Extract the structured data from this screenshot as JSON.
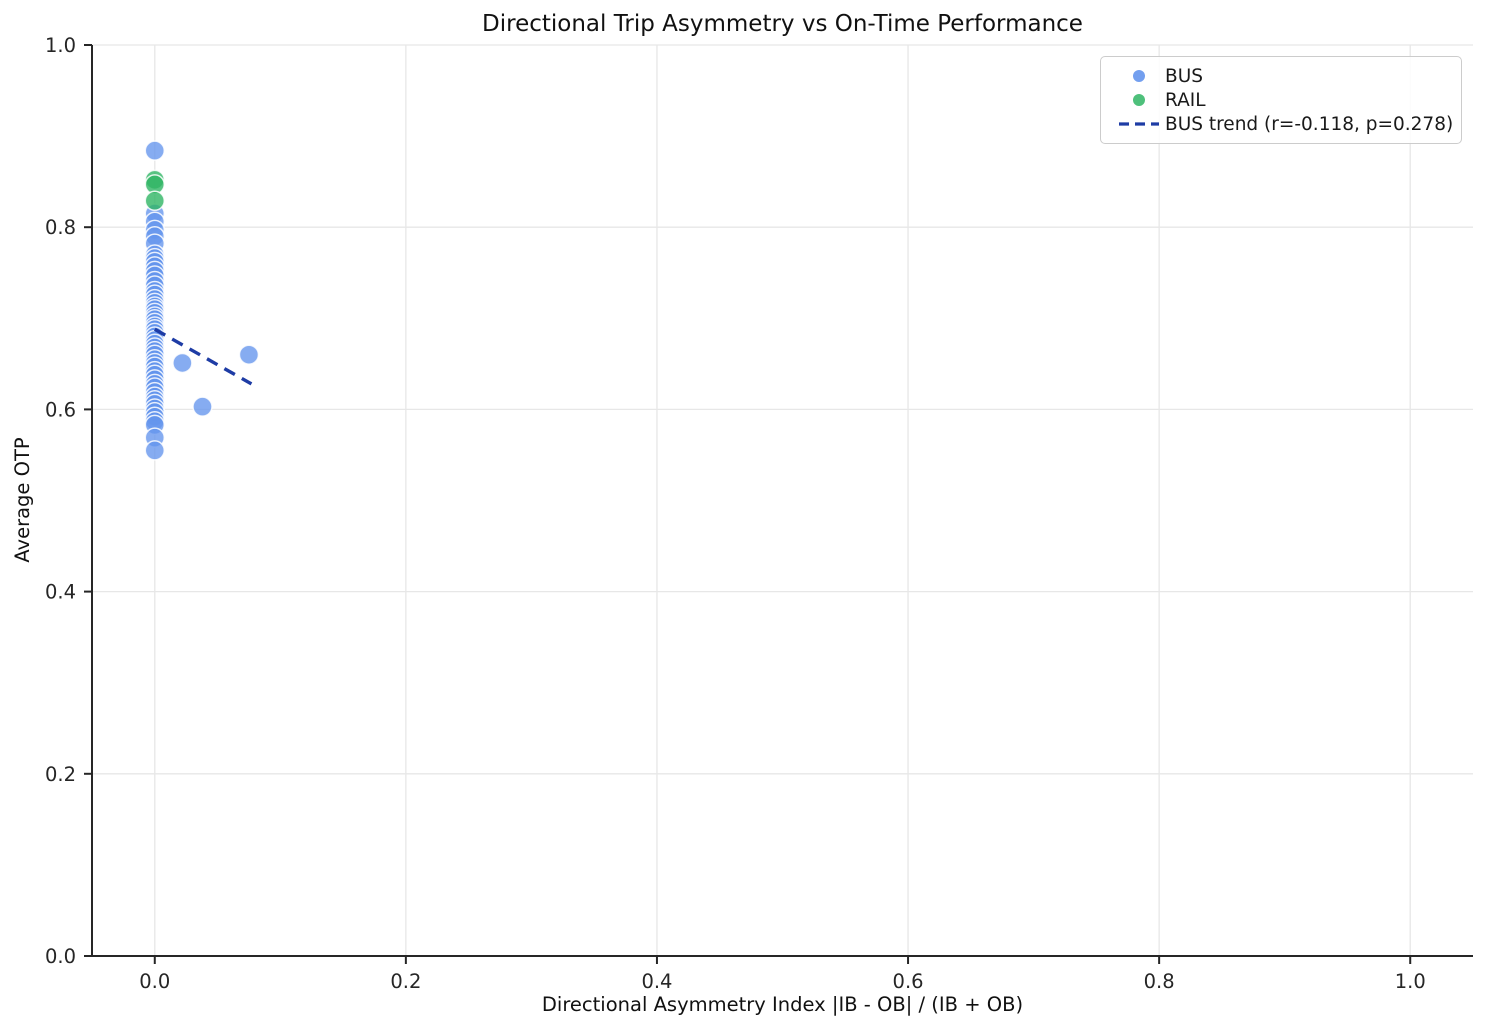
{
  "chart_data": {
    "type": "scatter",
    "title": "Directional Trip Asymmetry vs On-Time Performance",
    "xlabel": "Directional Asymmetry Index |IB - OB| / (IB + OB)",
    "ylabel": "Average OTP",
    "xlim": [
      -0.05,
      1.05
    ],
    "ylim": [
      0.0,
      1.0
    ],
    "xticks": [
      0.0,
      0.2,
      0.4,
      0.6,
      0.8,
      1.0
    ],
    "yticks": [
      0.0,
      0.2,
      0.4,
      0.6,
      0.8,
      1.0
    ],
    "grid": true,
    "legend_position": "upper right",
    "series": [
      {
        "name": "BUS",
        "color": "#6495ED",
        "opacity": 0.78,
        "points": [
          [
            0.0,
            0.884
          ],
          [
            0.0,
            0.815
          ],
          [
            0.0,
            0.806
          ],
          [
            0.0,
            0.797
          ],
          [
            0.0,
            0.79
          ],
          [
            0.0,
            0.782
          ],
          [
            0.0,
            0.77
          ],
          [
            0.0,
            0.766
          ],
          [
            0.0,
            0.762
          ],
          [
            0.0,
            0.757
          ],
          [
            0.0,
            0.752
          ],
          [
            0.0,
            0.747
          ],
          [
            0.0,
            0.741
          ],
          [
            0.0,
            0.736
          ],
          [
            0.0,
            0.73
          ],
          [
            0.0,
            0.726
          ],
          [
            0.0,
            0.721
          ],
          [
            0.0,
            0.717
          ],
          [
            0.0,
            0.713
          ],
          [
            0.0,
            0.71
          ],
          [
            0.0,
            0.706
          ],
          [
            0.0,
            0.702
          ],
          [
            0.0,
            0.699
          ],
          [
            0.0,
            0.695
          ],
          [
            0.0,
            0.691
          ],
          [
            0.0,
            0.688
          ],
          [
            0.0,
            0.684
          ],
          [
            0.0,
            0.68
          ],
          [
            0.0,
            0.676
          ],
          [
            0.0,
            0.672
          ],
          [
            0.0,
            0.668
          ],
          [
            0.0,
            0.664
          ],
          [
            0.0,
            0.66
          ],
          [
            0.0,
            0.655
          ],
          [
            0.0,
            0.651
          ],
          [
            0.0,
            0.647
          ],
          [
            0.0,
            0.642
          ],
          [
            0.0,
            0.638
          ],
          [
            0.0,
            0.633
          ],
          [
            0.0,
            0.628
          ],
          [
            0.0,
            0.624
          ],
          [
            0.0,
            0.619
          ],
          [
            0.0,
            0.614
          ],
          [
            0.0,
            0.61
          ],
          [
            0.0,
            0.606
          ],
          [
            0.0,
            0.601
          ],
          [
            0.0,
            0.597
          ],
          [
            0.0,
            0.592
          ],
          [
            0.0,
            0.587
          ],
          [
            0.0,
            0.583
          ],
          [
            0.0,
            0.569
          ],
          [
            0.0,
            0.555
          ],
          [
            0.022,
            0.651
          ],
          [
            0.038,
            0.603
          ],
          [
            0.075,
            0.66
          ]
        ]
      },
      {
        "name": "RAIL",
        "color": "#2FB564",
        "opacity": 0.8,
        "points": [
          [
            0.0,
            0.852
          ],
          [
            0.0,
            0.847
          ],
          [
            0.0,
            0.829
          ]
        ]
      }
    ],
    "trend": {
      "label": "BUS trend (r=-0.118, p=0.278)",
      "color": "#1E3CA5",
      "style": "dashed",
      "r": -0.118,
      "p": 0.278,
      "x": [
        0.0,
        0.077
      ],
      "y": [
        0.688,
        0.628
      ]
    },
    "legend": [
      {
        "label": "BUS",
        "swatch": "dot",
        "color": "#6495ED"
      },
      {
        "label": "RAIL",
        "swatch": "dot",
        "color": "#2FB564"
      },
      {
        "label": "BUS trend (r=-0.118, p=0.278)",
        "swatch": "dashed-line",
        "color": "#1E3CA5"
      }
    ]
  }
}
